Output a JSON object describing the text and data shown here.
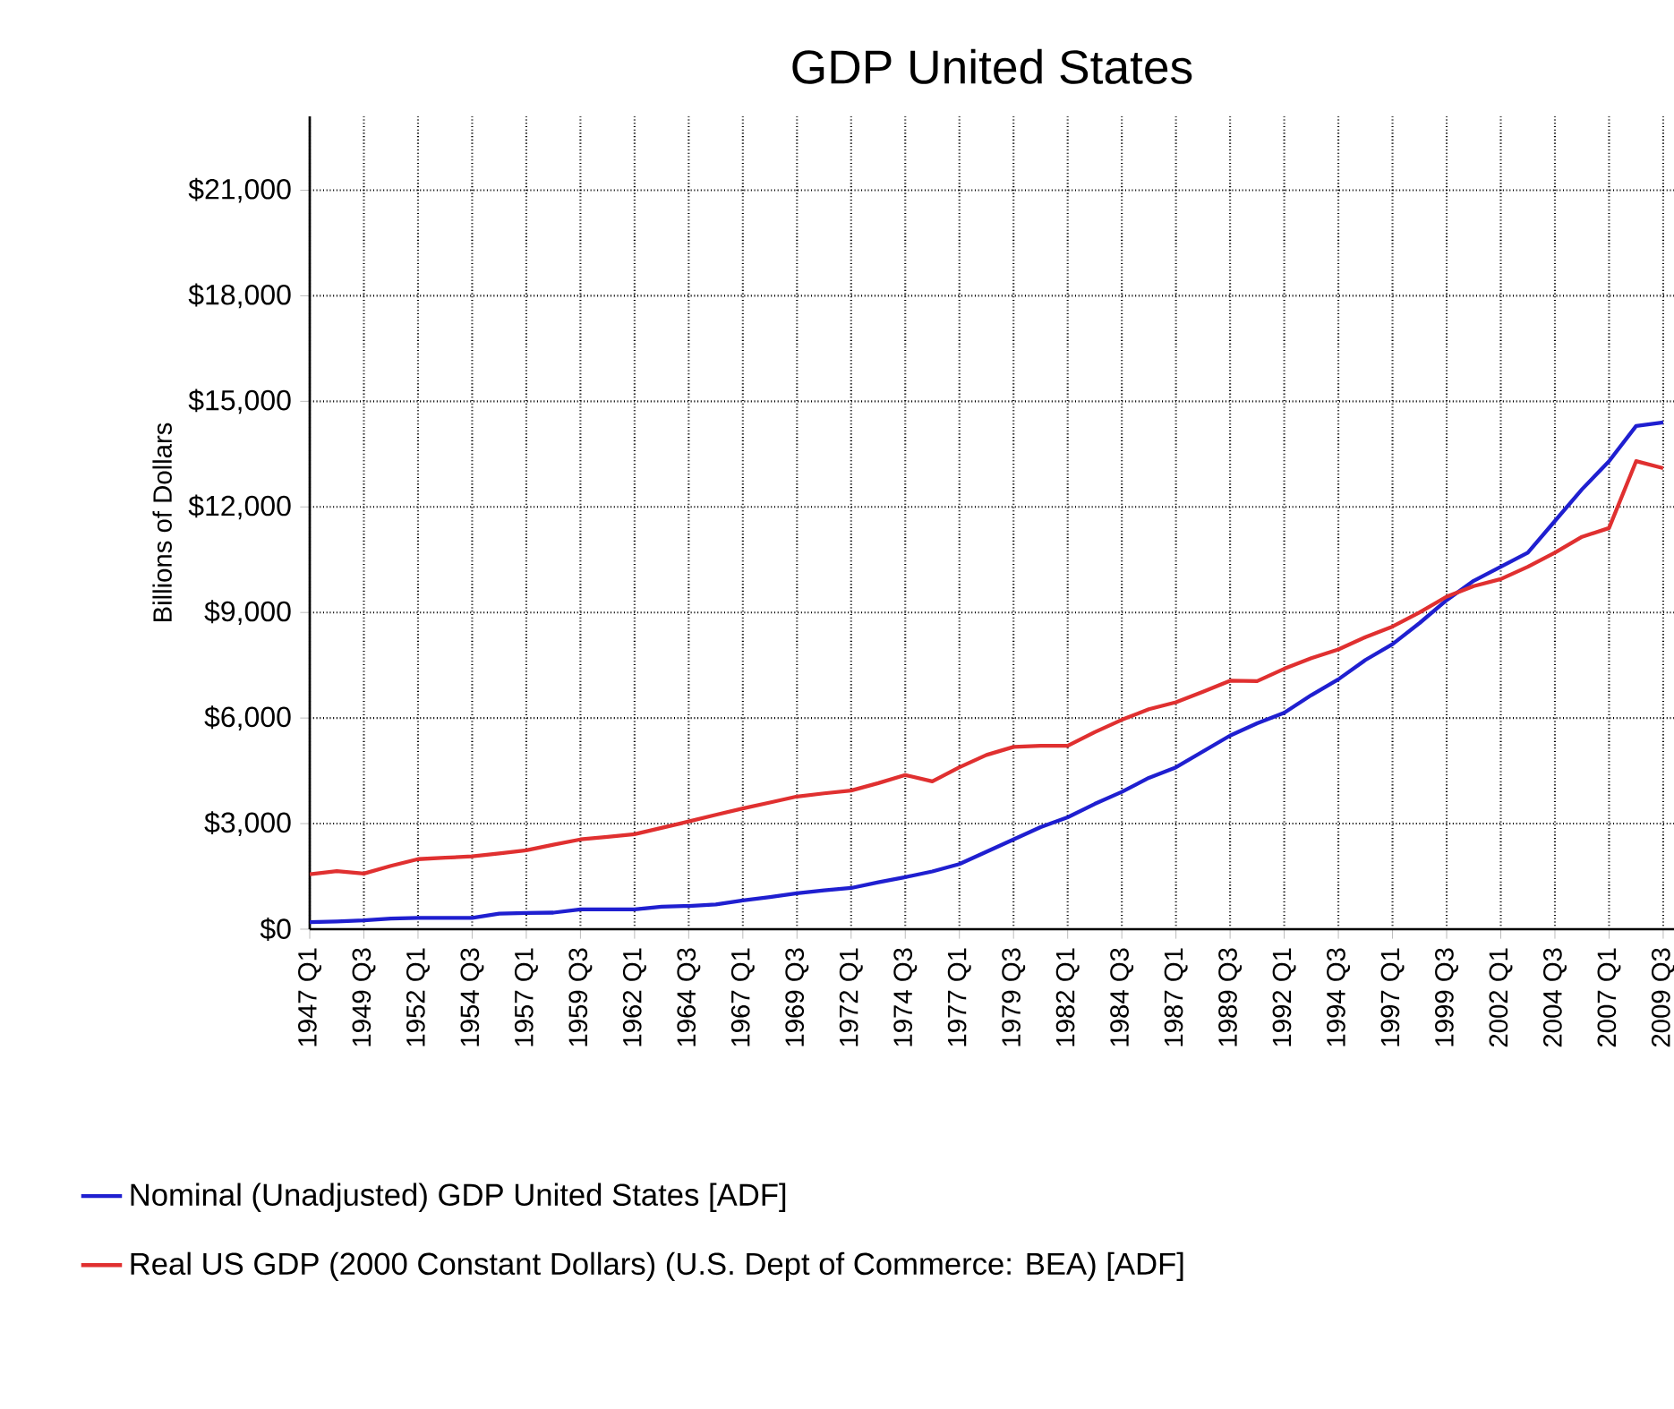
{
  "chart_data": {
    "type": "line",
    "title": "GDP United States",
    "ylabel": "Billions of Dollars",
    "categories": [
      "1947 Q1",
      null,
      "1949 Q3",
      null,
      "1952 Q1",
      null,
      "1954 Q3",
      null,
      "1957 Q1",
      null,
      "1959 Q3",
      null,
      "1962 Q1",
      null,
      "1964 Q3",
      null,
      "1967 Q1",
      null,
      "1969 Q3",
      null,
      "1972 Q1",
      null,
      "1974 Q3",
      null,
      "1977 Q1",
      null,
      "1979 Q3",
      null,
      "1982 Q1",
      null,
      "1984 Q3",
      null,
      "1987 Q1",
      null,
      "1989 Q3",
      null,
      "1992 Q1",
      null,
      "1994 Q3",
      null,
      "1997 Q1",
      null,
      "1999 Q3",
      null,
      "2002 Q1",
      null,
      "2004 Q3",
      null,
      "2007 Q1",
      null,
      "2009 Q3"
    ],
    "series": [
      {
        "name": "Nominal (Unadjusted) GDP United States  [ADF]",
        "color": "#1f1fd0",
        "values": [
          200,
          220,
          250,
          300,
          320,
          320,
          320,
          440,
          460,
          470,
          560,
          560,
          560,
          640,
          660,
          700,
          815,
          910,
          1020,
          1100,
          1170,
          1330,
          1480,
          1640,
          1850,
          2200,
          2550,
          2900,
          3180,
          3560,
          3900,
          4300,
          4600,
          5050,
          5500,
          5850,
          6150,
          6650,
          7100,
          7650,
          8100,
          8700,
          9350,
          9900,
          10300,
          10700,
          11600,
          12500,
          13300,
          14300,
          14400
        ]
      },
      {
        "name": "Real US GDP (2000 Constant Dollars)  (U.S. Dept of Commerce: BEA) [ADF]",
        "color": "#e03030",
        "values": [
          1560,
          1650,
          1580,
          1800,
          1990,
          2030,
          2070,
          2150,
          2240,
          2400,
          2550,
          2620,
          2700,
          2880,
          3060,
          3250,
          3430,
          3600,
          3770,
          3860,
          3940,
          4150,
          4380,
          4200,
          4600,
          4950,
          5180,
          5210,
          5210,
          5600,
          5950,
          6250,
          6450,
          6750,
          7060,
          7050,
          7400,
          7700,
          7950,
          8300,
          8600,
          9000,
          9450,
          9750,
          9950,
          10300,
          10700,
          11150,
          11400,
          13300,
          13100
        ]
      }
    ],
    "ylim": [
      0,
      23100
    ],
    "yticks": [
      {
        "value": 0,
        "label": "$0"
      },
      {
        "value": 3000,
        "label": "$3,000"
      },
      {
        "value": 6000,
        "label": "$6,000"
      },
      {
        "value": 9000,
        "label": "$9,000"
      },
      {
        "value": 12000,
        "label": "$12,000"
      },
      {
        "value": 15000,
        "label": "$15,000"
      },
      {
        "value": 18000,
        "label": "$18,000"
      },
      {
        "value": 21000,
        "label": "$21,000"
      }
    ],
    "grid": true,
    "legend": "bottom",
    "marker": "none",
    "line_style": "solid"
  }
}
